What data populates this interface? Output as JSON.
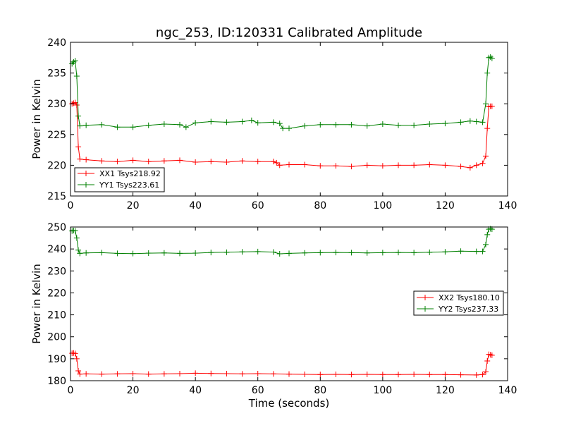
{
  "chart_data": [
    {
      "type": "line",
      "title": "ngc_253, ID:120331 Calibrated Amplitude",
      "xlabel": "",
      "ylabel": "Power in Kelvin",
      "xlim": [
        0,
        140
      ],
      "ylim": [
        215,
        240
      ],
      "xticks": [
        0,
        20,
        40,
        60,
        80,
        100,
        120,
        140
      ],
      "yticks": [
        215,
        220,
        225,
        230,
        235,
        240
      ],
      "xtick_labels": [
        "0",
        "20",
        "40",
        "60",
        "80",
        "100",
        "120",
        "140"
      ],
      "ytick_labels": [
        "215",
        "220",
        "225",
        "230",
        "235",
        "240"
      ],
      "grid": false,
      "legend_position": "lower-left",
      "series": [
        {
          "name": "XX1 Tsys218.92",
          "color": "#ff0000",
          "marker": "plus",
          "x": [
            0.5,
            1.0,
            1.5,
            2.0,
            2.5,
            3,
            5,
            10,
            15,
            20,
            25,
            30,
            35,
            40,
            45,
            50,
            55,
            60,
            65,
            66,
            67,
            70,
            75,
            80,
            85,
            90,
            95,
            100,
            105,
            110,
            115,
            120,
            125,
            128,
            130,
            132,
            133,
            133.5,
            134,
            134.5,
            135
          ],
          "y": [
            230.0,
            230.1,
            230.2,
            229.8,
            223.0,
            221.0,
            220.9,
            220.7,
            220.6,
            220.8,
            220.6,
            220.7,
            220.8,
            220.5,
            220.6,
            220.5,
            220.7,
            220.6,
            220.6,
            220.4,
            220.0,
            220.1,
            220.1,
            219.9,
            219.9,
            219.8,
            220.0,
            219.9,
            220.0,
            220.0,
            220.1,
            220.0,
            219.8,
            219.6,
            220.0,
            220.3,
            221.5,
            226.0,
            229.5,
            229.6,
            229.6
          ]
        },
        {
          "name": "YY1 Tsys223.61",
          "color": "#008000",
          "marker": "plus",
          "x": [
            0.5,
            1.0,
            1.5,
            2.0,
            2.5,
            3,
            5,
            10,
            15,
            20,
            25,
            30,
            35,
            37,
            40,
            45,
            50,
            55,
            58,
            60,
            65,
            67,
            68,
            70,
            75,
            80,
            85,
            90,
            95,
            100,
            105,
            110,
            115,
            120,
            125,
            128,
            130,
            132,
            133,
            133.5,
            134,
            134.5,
            135
          ],
          "y": [
            236.5,
            236.8,
            237.0,
            234.5,
            228.0,
            226.4,
            226.5,
            226.6,
            226.2,
            226.2,
            226.5,
            226.7,
            226.6,
            226.2,
            226.9,
            227.1,
            227.0,
            227.1,
            227.3,
            226.9,
            227.0,
            226.8,
            226.0,
            226.0,
            226.4,
            226.6,
            226.6,
            226.6,
            226.4,
            226.7,
            226.5,
            226.5,
            226.7,
            226.8,
            227.0,
            227.2,
            227.1,
            227.0,
            230.0,
            235.0,
            237.5,
            237.6,
            237.4
          ]
        }
      ]
    },
    {
      "type": "line",
      "title": "",
      "xlabel": "Time (seconds)",
      "ylabel": "Power in Kelvin",
      "xlim": [
        0,
        140
      ],
      "ylim": [
        180,
        250
      ],
      "xticks": [
        0,
        20,
        40,
        60,
        80,
        100,
        120,
        140
      ],
      "yticks": [
        180,
        190,
        200,
        210,
        220,
        230,
        240,
        250
      ],
      "xtick_labels": [
        "0",
        "20",
        "40",
        "60",
        "80",
        "100",
        "120",
        "140"
      ],
      "ytick_labels": [
        "180",
        "190",
        "200",
        "210",
        "220",
        "230",
        "240",
        "250"
      ],
      "grid": false,
      "legend_position": "center-right",
      "series": [
        {
          "name": "XX2 Tsys180.10",
          "color": "#ff0000",
          "marker": "plus",
          "x": [
            0.5,
            1.0,
            1.5,
            2.0,
            2.5,
            3,
            5,
            10,
            15,
            20,
            25,
            30,
            35,
            40,
            45,
            50,
            55,
            60,
            65,
            70,
            75,
            80,
            85,
            90,
            95,
            100,
            105,
            110,
            115,
            120,
            125,
            130,
            132,
            133,
            133.5,
            134,
            134.5,
            135
          ],
          "y": [
            192.5,
            192.6,
            192.4,
            190.0,
            184.5,
            183.0,
            183.1,
            183.0,
            183.1,
            183.2,
            183.0,
            183.1,
            183.2,
            183.4,
            183.3,
            183.2,
            183.1,
            183.2,
            183.1,
            183.0,
            182.9,
            182.8,
            182.9,
            182.8,
            182.9,
            182.8,
            182.8,
            182.9,
            182.8,
            182.8,
            182.7,
            182.6,
            182.8,
            184.0,
            189.0,
            192.0,
            191.8,
            191.6
          ]
        },
        {
          "name": "YY2 Tsys237.33",
          "color": "#008000",
          "marker": "plus",
          "x": [
            0.5,
            1.0,
            1.5,
            2.0,
            2.5,
            3,
            5,
            10,
            15,
            20,
            25,
            30,
            35,
            40,
            45,
            50,
            55,
            60,
            65,
            67,
            70,
            75,
            80,
            85,
            90,
            95,
            100,
            105,
            110,
            115,
            120,
            125,
            130,
            132,
            133,
            133.5,
            134,
            134.5,
            135
          ],
          "y": [
            248.2,
            248.4,
            248.3,
            245.0,
            239.5,
            238.0,
            238.2,
            238.3,
            238.0,
            237.9,
            238.1,
            238.2,
            238.0,
            238.1,
            238.4,
            238.5,
            238.7,
            238.8,
            238.6,
            237.8,
            238.0,
            238.2,
            238.3,
            238.4,
            238.3,
            238.2,
            238.3,
            238.4,
            238.3,
            238.5,
            238.7,
            239.0,
            238.9,
            238.9,
            242.0,
            246.5,
            249.0,
            249.2,
            249.0
          ]
        }
      ]
    }
  ]
}
